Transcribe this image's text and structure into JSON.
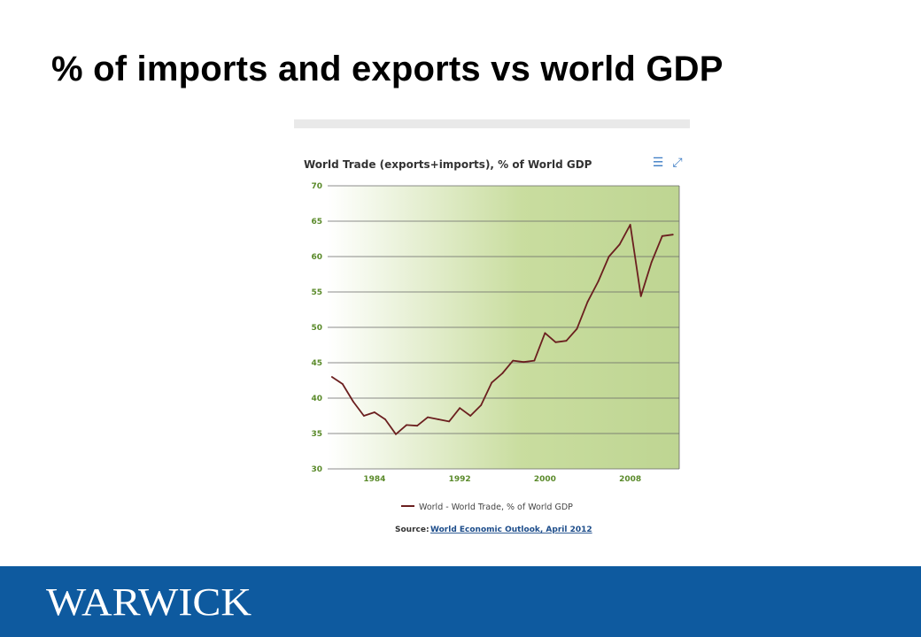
{
  "slide": {
    "title": "% of imports and exports vs world GDP",
    "logo_text": "WARWICK"
  },
  "colors": {
    "footer": "#0e5a9f",
    "line": "#6b1f1f",
    "gradient_light": "#ffffff",
    "gradient_dark": "#c2d997",
    "grid": "#666666",
    "tick_label_x": "#5a8a2a",
    "tick_label_y": "#5a8a2a",
    "icon": "#3b7cc4"
  },
  "chart_ui": {
    "menu_icon": "menu-icon",
    "expand_icon": "expand-icon"
  },
  "chart_data": {
    "type": "line",
    "title": "World Trade (exports+imports), % of World GDP",
    "x": [
      1980,
      1981,
      1982,
      1983,
      1984,
      1985,
      1986,
      1987,
      1988,
      1989,
      1990,
      1991,
      1992,
      1993,
      1994,
      1995,
      1996,
      1997,
      1998,
      1999,
      2000,
      2001,
      2002,
      2003,
      2004,
      2005,
      2006,
      2007,
      2008,
      2009,
      2010,
      2011,
      2012
    ],
    "series": [
      {
        "name": "World - World Trade, % of World GDP",
        "values": [
          43.0,
          42.0,
          39.5,
          37.5,
          38.0,
          37.0,
          34.9,
          36.2,
          36.1,
          37.3,
          37.0,
          36.7,
          38.6,
          37.5,
          39.0,
          42.2,
          43.5,
          45.3,
          45.1,
          45.3,
          49.2,
          47.9,
          48.1,
          49.8,
          53.6,
          56.5,
          60.0,
          61.7,
          64.5,
          54.4,
          59.2,
          62.9,
          63.1
        ]
      }
    ],
    "xticks": [
      "1984",
      "1992",
      "2000",
      "2008"
    ],
    "xtick_values": [
      1984,
      1992,
      2000,
      2008
    ],
    "yticks": [
      "30",
      "35",
      "40",
      "45",
      "50",
      "55",
      "60",
      "65",
      "70"
    ],
    "ylim": [
      30,
      70
    ],
    "xlim": [
      1979.6,
      2012.6
    ],
    "grid": true,
    "legend_position": "bottom",
    "source_label": "Source:",
    "source_link": "World Economic Outlook, April 2012"
  }
}
